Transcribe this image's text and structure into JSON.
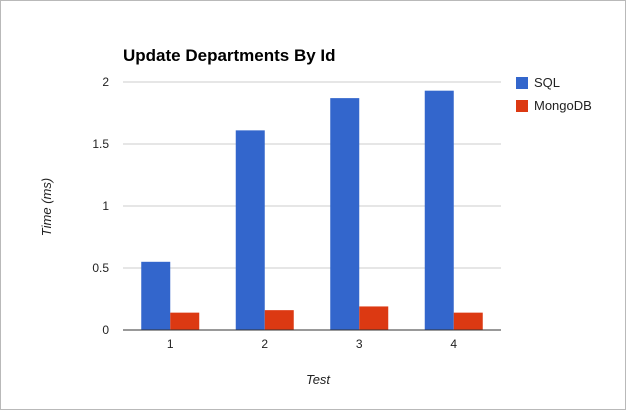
{
  "chart_data": {
    "type": "bar",
    "title": "Update Departments By Id",
    "xlabel": "Test",
    "ylabel": "Time (ms)",
    "categories": [
      "1",
      "2",
      "3",
      "4"
    ],
    "ylim": [
      0,
      2
    ],
    "yticks": [
      "0",
      "0.5",
      "1",
      "1.5",
      "2"
    ],
    "grid": true,
    "legend_position": "right",
    "series": [
      {
        "name": "SQL",
        "color": "#3366cc",
        "values": [
          0.55,
          1.61,
          1.87,
          1.93
        ]
      },
      {
        "name": "MongoDB",
        "color": "#dc3912",
        "values": [
          0.14,
          0.16,
          0.19,
          0.14
        ]
      }
    ]
  }
}
